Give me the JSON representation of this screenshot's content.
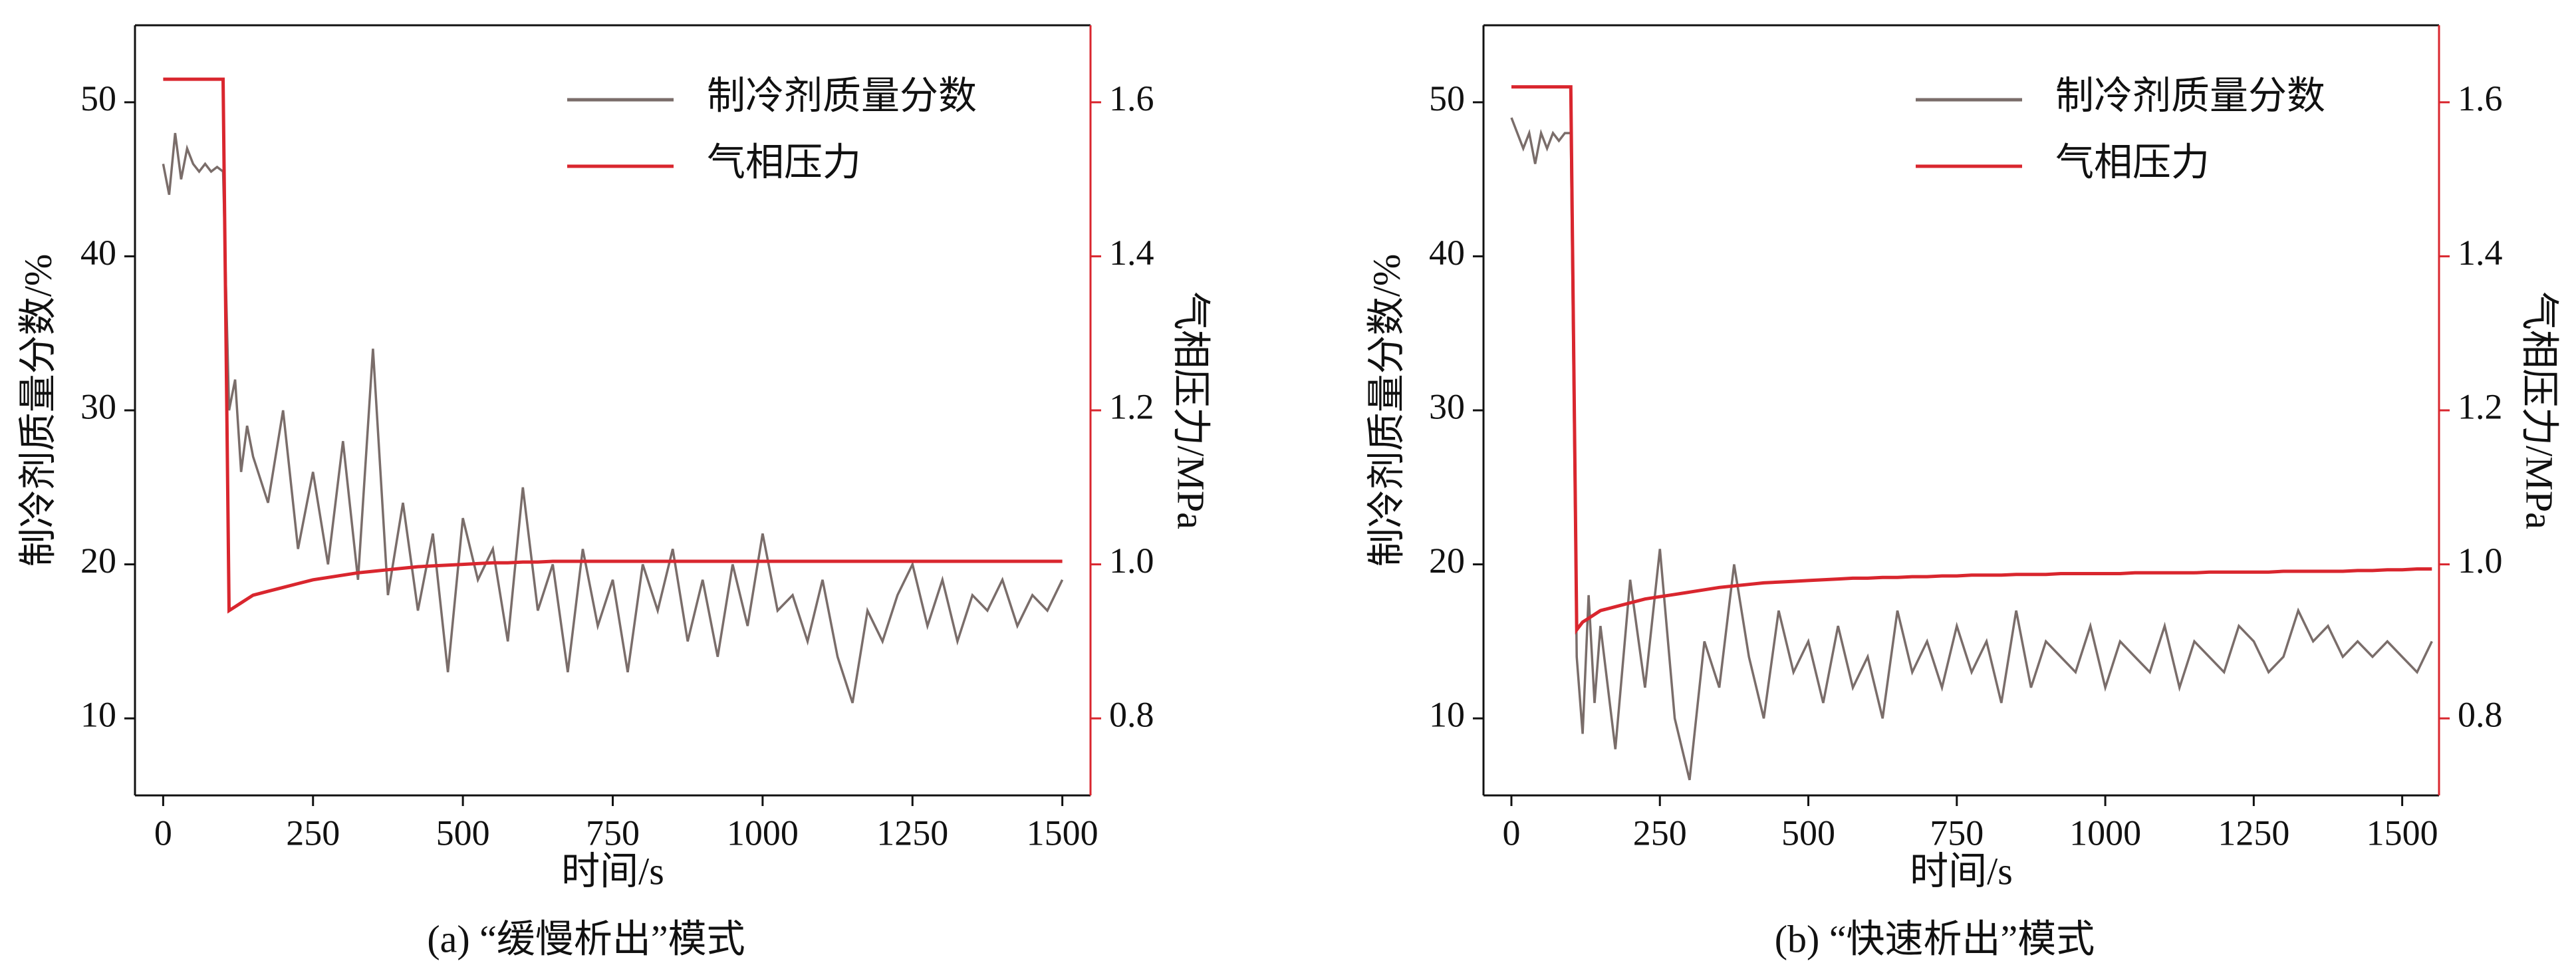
{
  "chart_data": [
    {
      "type": "line",
      "caption": "(a) “缓慢析出”模式",
      "xlabel": "时间/s",
      "ylabel": "制冷剂质量分数/%",
      "y2label": "气相压力/MPa",
      "x": [
        0,
        10,
        20,
        30,
        40,
        50,
        60,
        70,
        80,
        90,
        100,
        110,
        120,
        130,
        140,
        150,
        175,
        200,
        225,
        250,
        275,
        300,
        325,
        350,
        375,
        400,
        425,
        450,
        475,
        500,
        525,
        550,
        575,
        600,
        625,
        650,
        675,
        700,
        725,
        750,
        775,
        800,
        825,
        850,
        875,
        900,
        925,
        950,
        975,
        1000,
        1025,
        1050,
        1075,
        1100,
        1125,
        1150,
        1175,
        1200,
        1225,
        1250,
        1275,
        1300,
        1325,
        1350,
        1375,
        1400,
        1425,
        1450,
        1475,
        1500
      ],
      "series": [
        {
          "name": "制冷剂质量分数",
          "color": "#7a6d6a",
          "axis": "y",
          "values": [
            46,
            44,
            48,
            45,
            47,
            46,
            45.5,
            46,
            45.5,
            45.8,
            45.5,
            30,
            32,
            26,
            29,
            27,
            24,
            30,
            21,
            26,
            20,
            28,
            19,
            34,
            18,
            24,
            17,
            22,
            13,
            23,
            19,
            21,
            15,
            25,
            17,
            20,
            13,
            21,
            16,
            19,
            13,
            20,
            17,
            21,
            15,
            19,
            14,
            20,
            16,
            22,
            17,
            18,
            15,
            19,
            14,
            11,
            17,
            15,
            18,
            20,
            16,
            19,
            15,
            18,
            17,
            19,
            16,
            18,
            17,
            19
          ]
        },
        {
          "name": "气相压力",
          "color": "#d9262e",
          "axis": "y2",
          "values": [
            1.63,
            1.63,
            1.63,
            1.63,
            1.63,
            1.63,
            1.63,
            1.63,
            1.63,
            1.63,
            1.63,
            0.94,
            0.945,
            0.95,
            0.955,
            0.96,
            0.965,
            0.97,
            0.975,
            0.98,
            0.983,
            0.986,
            0.989,
            0.991,
            0.993,
            0.995,
            0.997,
            0.998,
            0.999,
            1.0,
            1.001,
            1.002,
            1.002,
            1.003,
            1.003,
            1.004,
            1.004,
            1.004,
            1.004,
            1.004,
            1.004,
            1.004,
            1.004,
            1.004,
            1.004,
            1.004,
            1.004,
            1.004,
            1.004,
            1.004,
            1.004,
            1.004,
            1.004,
            1.004,
            1.004,
            1.004,
            1.004,
            1.004,
            1.004,
            1.004,
            1.004,
            1.004,
            1.004,
            1.004,
            1.004,
            1.004,
            1.004,
            1.004,
            1.004,
            1.004
          ]
        }
      ],
      "xlim": [
        -47,
        1547
      ],
      "ylim": [
        5,
        55
      ],
      "y2lim": [
        0.7,
        1.7
      ],
      "xticks": [
        0,
        250,
        500,
        750,
        1000,
        1250,
        1500
      ],
      "yticks": [
        10,
        20,
        30,
        40,
        50
      ],
      "y2ticks": [
        0.8,
        {
          "value": 1,
          "label": "1.0"
        },
        1.2,
        1.4,
        1.6
      ]
    },
    {
      "type": "line",
      "caption": "(b) “快速析出”模式",
      "xlabel": "时间/s",
      "ylabel": "制冷剂质量分数/%",
      "y2label": "气相压力/MPa",
      "x": [
        0,
        10,
        20,
        30,
        40,
        50,
        60,
        70,
        80,
        90,
        100,
        110,
        120,
        130,
        140,
        150,
        175,
        200,
        225,
        250,
        275,
        300,
        325,
        350,
        375,
        400,
        425,
        450,
        475,
        500,
        525,
        550,
        575,
        600,
        625,
        650,
        675,
        700,
        725,
        750,
        775,
        800,
        825,
        850,
        875,
        900,
        925,
        950,
        975,
        1000,
        1025,
        1050,
        1075,
        1100,
        1125,
        1150,
        1175,
        1200,
        1225,
        1250,
        1275,
        1300,
        1325,
        1350,
        1375,
        1400,
        1425,
        1450,
        1475,
        1500,
        1525,
        1550
      ],
      "series": [
        {
          "name": "制冷剂质量分数",
          "color": "#7a6d6a",
          "axis": "y",
          "values": [
            49,
            48,
            47,
            48,
            46,
            48,
            47,
            48,
            47.5,
            48,
            48,
            14,
            9,
            18,
            11,
            16,
            8,
            19,
            12,
            21,
            10,
            6,
            15,
            12,
            20,
            14,
            10,
            17,
            13,
            15,
            11,
            16,
            12,
            14,
            10,
            17,
            13,
            15,
            12,
            16,
            13,
            15,
            11,
            17,
            12,
            15,
            14,
            13,
            16,
            12,
            15,
            14,
            13,
            16,
            12,
            15,
            14,
            13,
            16,
            15,
            13,
            14,
            17,
            15,
            16,
            14,
            15,
            14,
            15,
            14,
            13,
            15
          ]
        },
        {
          "name": "气相压力",
          "color": "#d9262e",
          "axis": "y2",
          "values": [
            1.62,
            1.62,
            1.62,
            1.62,
            1.62,
            1.62,
            1.62,
            1.62,
            1.62,
            1.62,
            1.62,
            0.915,
            0.925,
            0.93,
            0.935,
            0.94,
            0.945,
            0.95,
            0.955,
            0.958,
            0.961,
            0.964,
            0.967,
            0.97,
            0.972,
            0.974,
            0.976,
            0.977,
            0.978,
            0.979,
            0.98,
            0.981,
            0.982,
            0.982,
            0.983,
            0.983,
            0.984,
            0.984,
            0.985,
            0.985,
            0.986,
            0.986,
            0.986,
            0.987,
            0.987,
            0.987,
            0.988,
            0.988,
            0.988,
            0.988,
            0.988,
            0.989,
            0.989,
            0.989,
            0.989,
            0.989,
            0.99,
            0.99,
            0.99,
            0.99,
            0.99,
            0.991,
            0.991,
            0.991,
            0.991,
            0.991,
            0.992,
            0.992,
            0.993,
            0.993,
            0.994,
            0.994
          ]
        }
      ],
      "xlim": [
        -47,
        1562
      ],
      "ylim": [
        5,
        55
      ],
      "y2lim": [
        0.7,
        1.7
      ],
      "xticks": [
        0,
        250,
        500,
        750,
        1000,
        1250,
        1500
      ],
      "yticks": [
        10,
        20,
        30,
        40,
        50
      ],
      "y2ticks": [
        0.8,
        {
          "value": 1,
          "label": "1.0"
        },
        1.2,
        1.4,
        1.6
      ]
    }
  ]
}
